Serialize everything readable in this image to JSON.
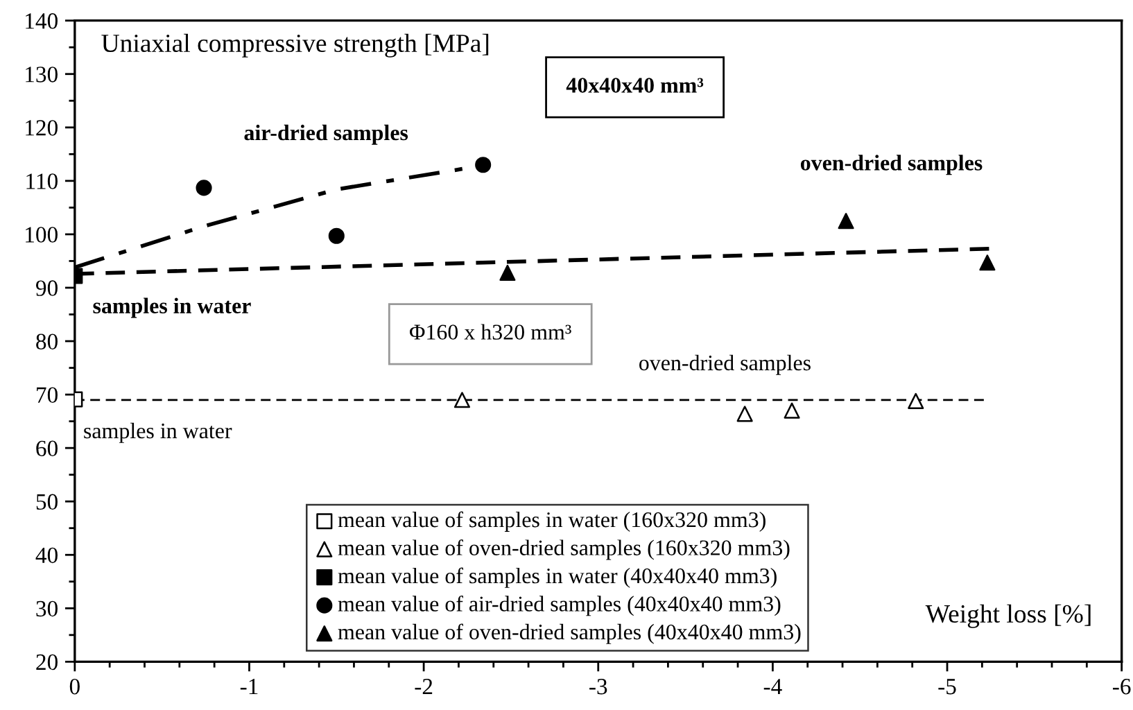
{
  "chart_data": {
    "type": "scatter",
    "xlabel": "Weight loss [%]",
    "ylabel": "Uniaxial compressive strength [MPa]",
    "xlim": [
      0,
      -6
    ],
    "ylim": [
      20,
      140
    ],
    "xticks": [
      0,
      -1,
      -2,
      -3,
      -4,
      -5,
      -6
    ],
    "yticks": [
      20,
      30,
      40,
      50,
      60,
      70,
      80,
      90,
      100,
      110,
      120,
      130,
      140
    ],
    "grid": false,
    "legend": "bottom",
    "annotations": [
      "air-dried samples",
      "samples in water",
      "samples in water",
      "oven-dried samples",
      "oven-dried samples",
      "40x40x40 mm³",
      "Φ160 x h320 mm³"
    ],
    "series": [
      {
        "name": "mean value of samples in water (160x320 mm3)",
        "marker": "square",
        "color": "#ffffff",
        "x": [
          0
        ],
        "values": [
          69.1
        ]
      },
      {
        "name": "mean value of oven-dried samples (160x320 mm3)",
        "marker": "triangle",
        "color": "#ffffff",
        "x": [
          -2.22,
          -3.84,
          -4.11,
          -4.82
        ],
        "values": [
          69.0,
          66.4,
          67.0,
          68.8
        ]
      },
      {
        "name": "mean value of samples in water (40x40x40 mm3)",
        "marker": "square",
        "color": "#000000",
        "x": [
          0
        ],
        "values": [
          92.2
        ]
      },
      {
        "name": "mean value of air-dried samples (40x40x40 mm3)",
        "marker": "circle",
        "color": "#000000",
        "x": [
          -0.74,
          -1.5,
          -2.34
        ],
        "values": [
          108.7,
          99.7,
          113.0
        ]
      },
      {
        "name": "mean value of oven-dried samples (40x40x40 mm3)",
        "marker": "triangle",
        "color": "#000000",
        "x": [
          -2.48,
          -4.42,
          -5.23
        ],
        "values": [
          92.8,
          102.5,
          94.7
        ]
      },
      {
        "type": "line",
        "line_style": "dashdot",
        "color": "#000000",
        "x": [
          0,
          -0.74,
          -1.5,
          -2.27
        ],
        "values": [
          93.8,
          101.5,
          108.4,
          112.5
        ]
      },
      {
        "type": "line",
        "line_style": "dashed",
        "color": "#000000",
        "x": [
          0,
          -5.24
        ],
        "values": [
          92.6,
          97.3
        ]
      },
      {
        "type": "line",
        "line_style": "dashed",
        "color": "#000000",
        "x": [
          0,
          -5.21
        ],
        "values": [
          69.0,
          69.0
        ]
      }
    ]
  }
}
